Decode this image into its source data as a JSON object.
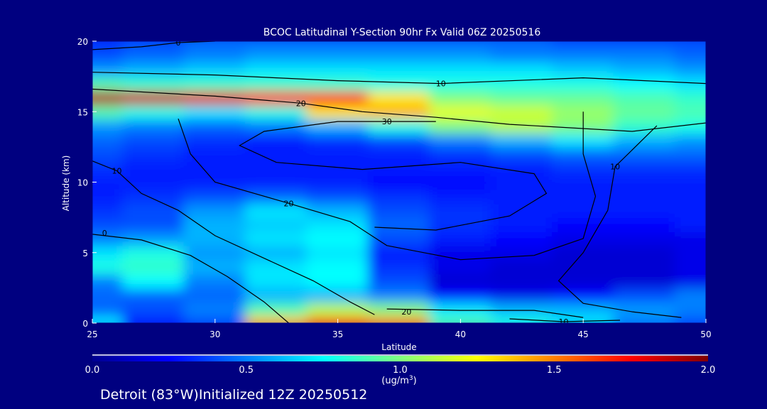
{
  "chart_data": {
    "type": "heatmap",
    "title": "BCOC Latitudinal Y-Section 90hr  Fx Valid 06Z 20250516",
    "xlabel": "Latitude",
    "ylabel": "Altitude (km)",
    "xlim": [
      25,
      50
    ],
    "ylim": [
      0,
      20
    ],
    "xticks": [
      "25",
      "30",
      "35",
      "40",
      "45",
      "50"
    ],
    "yticks": [
      "0",
      "5",
      "10",
      "15",
      "20"
    ],
    "x": [
      25,
      27.5,
      30,
      32.5,
      35,
      37.5,
      40,
      42.5,
      45,
      47.5,
      50
    ],
    "y": [
      0,
      1,
      2,
      3,
      4,
      5,
      6,
      7,
      8,
      9,
      10,
      11,
      12,
      13,
      14,
      15,
      16,
      17,
      18,
      19,
      20
    ],
    "values": [
      [
        0.7,
        0.3,
        0.4,
        1.4,
        1.6,
        1.5,
        0.9,
        0.8,
        0.7,
        0.5,
        0.4
      ],
      [
        0.45,
        0.4,
        0.5,
        0.9,
        1.1,
        1.0,
        0.7,
        0.6,
        0.6,
        0.55,
        0.5
      ],
      [
        0.45,
        0.45,
        0.45,
        0.6,
        0.6,
        0.5,
        0.25,
        0.2,
        0.25,
        0.4,
        0.5
      ],
      [
        0.5,
        0.75,
        0.5,
        0.7,
        0.75,
        0.4,
        0.15,
        0.15,
        0.15,
        0.15,
        0.2
      ],
      [
        0.8,
        0.85,
        0.6,
        0.7,
        0.75,
        0.35,
        0.2,
        0.15,
        0.15,
        0.15,
        0.2
      ],
      [
        0.7,
        0.8,
        0.55,
        0.6,
        0.7,
        0.3,
        0.2,
        0.2,
        0.15,
        0.15,
        0.2
      ],
      [
        0.5,
        0.55,
        0.6,
        0.7,
        0.75,
        0.4,
        0.3,
        0.25,
        0.2,
        0.2,
        0.2
      ],
      [
        0.4,
        0.4,
        0.6,
        0.65,
        0.7,
        0.45,
        0.35,
        0.3,
        0.25,
        0.25,
        0.3
      ],
      [
        0.35,
        0.4,
        0.55,
        0.7,
        0.6,
        0.4,
        0.35,
        0.3,
        0.3,
        0.3,
        0.3
      ],
      [
        0.3,
        0.35,
        0.4,
        0.45,
        0.4,
        0.35,
        0.3,
        0.3,
        0.3,
        0.3,
        0.3
      ],
      [
        0.3,
        0.3,
        0.3,
        0.3,
        0.3,
        0.25,
        0.25,
        0.3,
        0.3,
        0.3,
        0.3
      ],
      [
        0.35,
        0.3,
        0.3,
        0.3,
        0.3,
        0.3,
        0.3,
        0.3,
        0.35,
        0.35,
        0.35
      ],
      [
        0.4,
        0.35,
        0.3,
        0.3,
        0.3,
        0.3,
        0.35,
        0.4,
        0.45,
        0.45,
        0.45
      ],
      [
        0.45,
        0.4,
        0.35,
        0.3,
        0.35,
        0.4,
        0.5,
        0.6,
        0.7,
        0.6,
        0.55
      ],
      [
        0.55,
        0.5,
        0.45,
        0.5,
        0.6,
        0.8,
        1.0,
        1.1,
        1.0,
        0.85,
        0.8
      ],
      [
        0.9,
        0.8,
        0.7,
        0.8,
        1.3,
        1.4,
        1.2,
        1.15,
        1.05,
        0.95,
        0.9
      ],
      [
        1.9,
        1.85,
        1.8,
        1.75,
        1.7,
        1.3,
        1.0,
        0.95,
        0.95,
        0.9,
        0.85
      ],
      [
        0.9,
        0.85,
        0.85,
        0.85,
        0.85,
        0.8,
        0.8,
        0.8,
        0.8,
        0.75,
        0.7
      ],
      [
        0.55,
        0.6,
        0.65,
        0.7,
        0.7,
        0.7,
        0.7,
        0.7,
        0.65,
        0.6,
        0.55
      ],
      [
        0.4,
        0.45,
        0.5,
        0.55,
        0.55,
        0.55,
        0.55,
        0.5,
        0.5,
        0.5,
        0.45
      ],
      [
        0.35,
        0.4,
        0.45,
        0.45,
        0.45,
        0.45,
        0.45,
        0.45,
        0.4,
        0.4,
        0.4
      ]
    ],
    "contours": [
      {
        "label": "0",
        "label_at": [
          28.5,
          19.9
        ],
        "points": [
          [
            25,
            19.4
          ],
          [
            27,
            19.6
          ],
          [
            28.5,
            19.9
          ],
          [
            30,
            20
          ]
        ]
      },
      {
        "label": "10",
        "label_at": [
          39.2,
          17.0
        ],
        "points": [
          [
            25,
            17.8
          ],
          [
            30,
            17.6
          ],
          [
            35,
            17.2
          ],
          [
            39.2,
            17.0
          ],
          [
            45,
            17.4
          ],
          [
            50,
            17.0
          ]
        ]
      },
      {
        "label": "20",
        "label_at": [
          33.5,
          15.6
        ],
        "points": [
          [
            25,
            16.6
          ],
          [
            30,
            16.1
          ],
          [
            33.5,
            15.6
          ],
          [
            36,
            15.0
          ],
          [
            39,
            14.6
          ],
          [
            42,
            14.1
          ],
          [
            47,
            13.6
          ],
          [
            50,
            14.2
          ]
        ]
      },
      {
        "label": "30",
        "label_at": [
          37,
          14.3
        ],
        "points": [
          [
            39,
            14.3
          ],
          [
            35,
            14.3
          ],
          [
            32,
            13.6
          ],
          [
            31,
            12.6
          ],
          [
            32.5,
            11.4
          ],
          [
            36,
            10.9
          ],
          [
            40,
            11.4
          ],
          [
            43,
            10.6
          ],
          [
            43.5,
            9.2
          ],
          [
            42,
            7.6
          ],
          [
            39,
            6.6
          ],
          [
            36.5,
            6.8
          ]
        ]
      },
      {
        "label": "20",
        "label_at": [
          33,
          8.5
        ],
        "points": [
          [
            28.5,
            14.5
          ],
          [
            29,
            12
          ],
          [
            30,
            10
          ],
          [
            33,
            8.5
          ],
          [
            35.5,
            7.2
          ],
          [
            37,
            5.5
          ],
          [
            40,
            4.5
          ],
          [
            43,
            4.8
          ],
          [
            45,
            6
          ],
          [
            45.5,
            9
          ],
          [
            45,
            12
          ],
          [
            45,
            15
          ]
        ]
      },
      {
        "label": "10",
        "label_at": [
          26,
          10.8
        ],
        "points": [
          [
            25,
            11.5
          ],
          [
            26,
            10.8
          ],
          [
            27,
            9.2
          ],
          [
            28.5,
            8
          ],
          [
            30,
            6.2
          ],
          [
            32,
            4.6
          ],
          [
            34,
            3.0
          ],
          [
            35.5,
            1.5
          ],
          [
            36.5,
            0.6
          ]
        ]
      },
      {
        "label": "0",
        "label_at": [
          25.5,
          6.4
        ],
        "points": [
          [
            25,
            6.3
          ],
          [
            27,
            5.9
          ],
          [
            29,
            4.8
          ],
          [
            30.5,
            3.3
          ],
          [
            32,
            1.5
          ],
          [
            33,
            0
          ]
        ]
      },
      {
        "label": "10",
        "label_at": [
          46.3,
          11.1
        ],
        "points": [
          [
            48,
            14
          ],
          [
            46.3,
            11.1
          ],
          [
            46,
            8
          ],
          [
            45,
            5
          ],
          [
            44,
            3
          ],
          [
            45,
            1.4
          ],
          [
            47,
            0.8
          ],
          [
            49,
            0.4
          ]
        ]
      },
      {
        "label": "20",
        "label_at": [
          37.8,
          0.8
        ],
        "points": [
          [
            37,
            1.0
          ],
          [
            40,
            0.9
          ],
          [
            43,
            0.9
          ],
          [
            45,
            0.4
          ]
        ]
      },
      {
        "label": "10",
        "label_at": [
          44.2,
          0.1
        ],
        "points": [
          [
            42,
            0.3
          ],
          [
            44.2,
            0.1
          ],
          [
            46.5,
            0.2
          ]
        ]
      }
    ],
    "colorbar": {
      "ticks": [
        "0.0",
        "0.5",
        "1.0",
        "1.5",
        "2.0"
      ],
      "range": [
        0,
        2
      ],
      "units": "(ug/m",
      "units_sup": "3",
      "units_close": ")"
    },
    "colors": [
      "#000090",
      "#0000ff",
      "#0080ff",
      "#00ffff",
      "#80ff80",
      "#ffff00",
      "#ff8000",
      "#ff0000",
      "#800000"
    ]
  },
  "footer": "Detroit (83°W)Initialized 12Z 20250512"
}
